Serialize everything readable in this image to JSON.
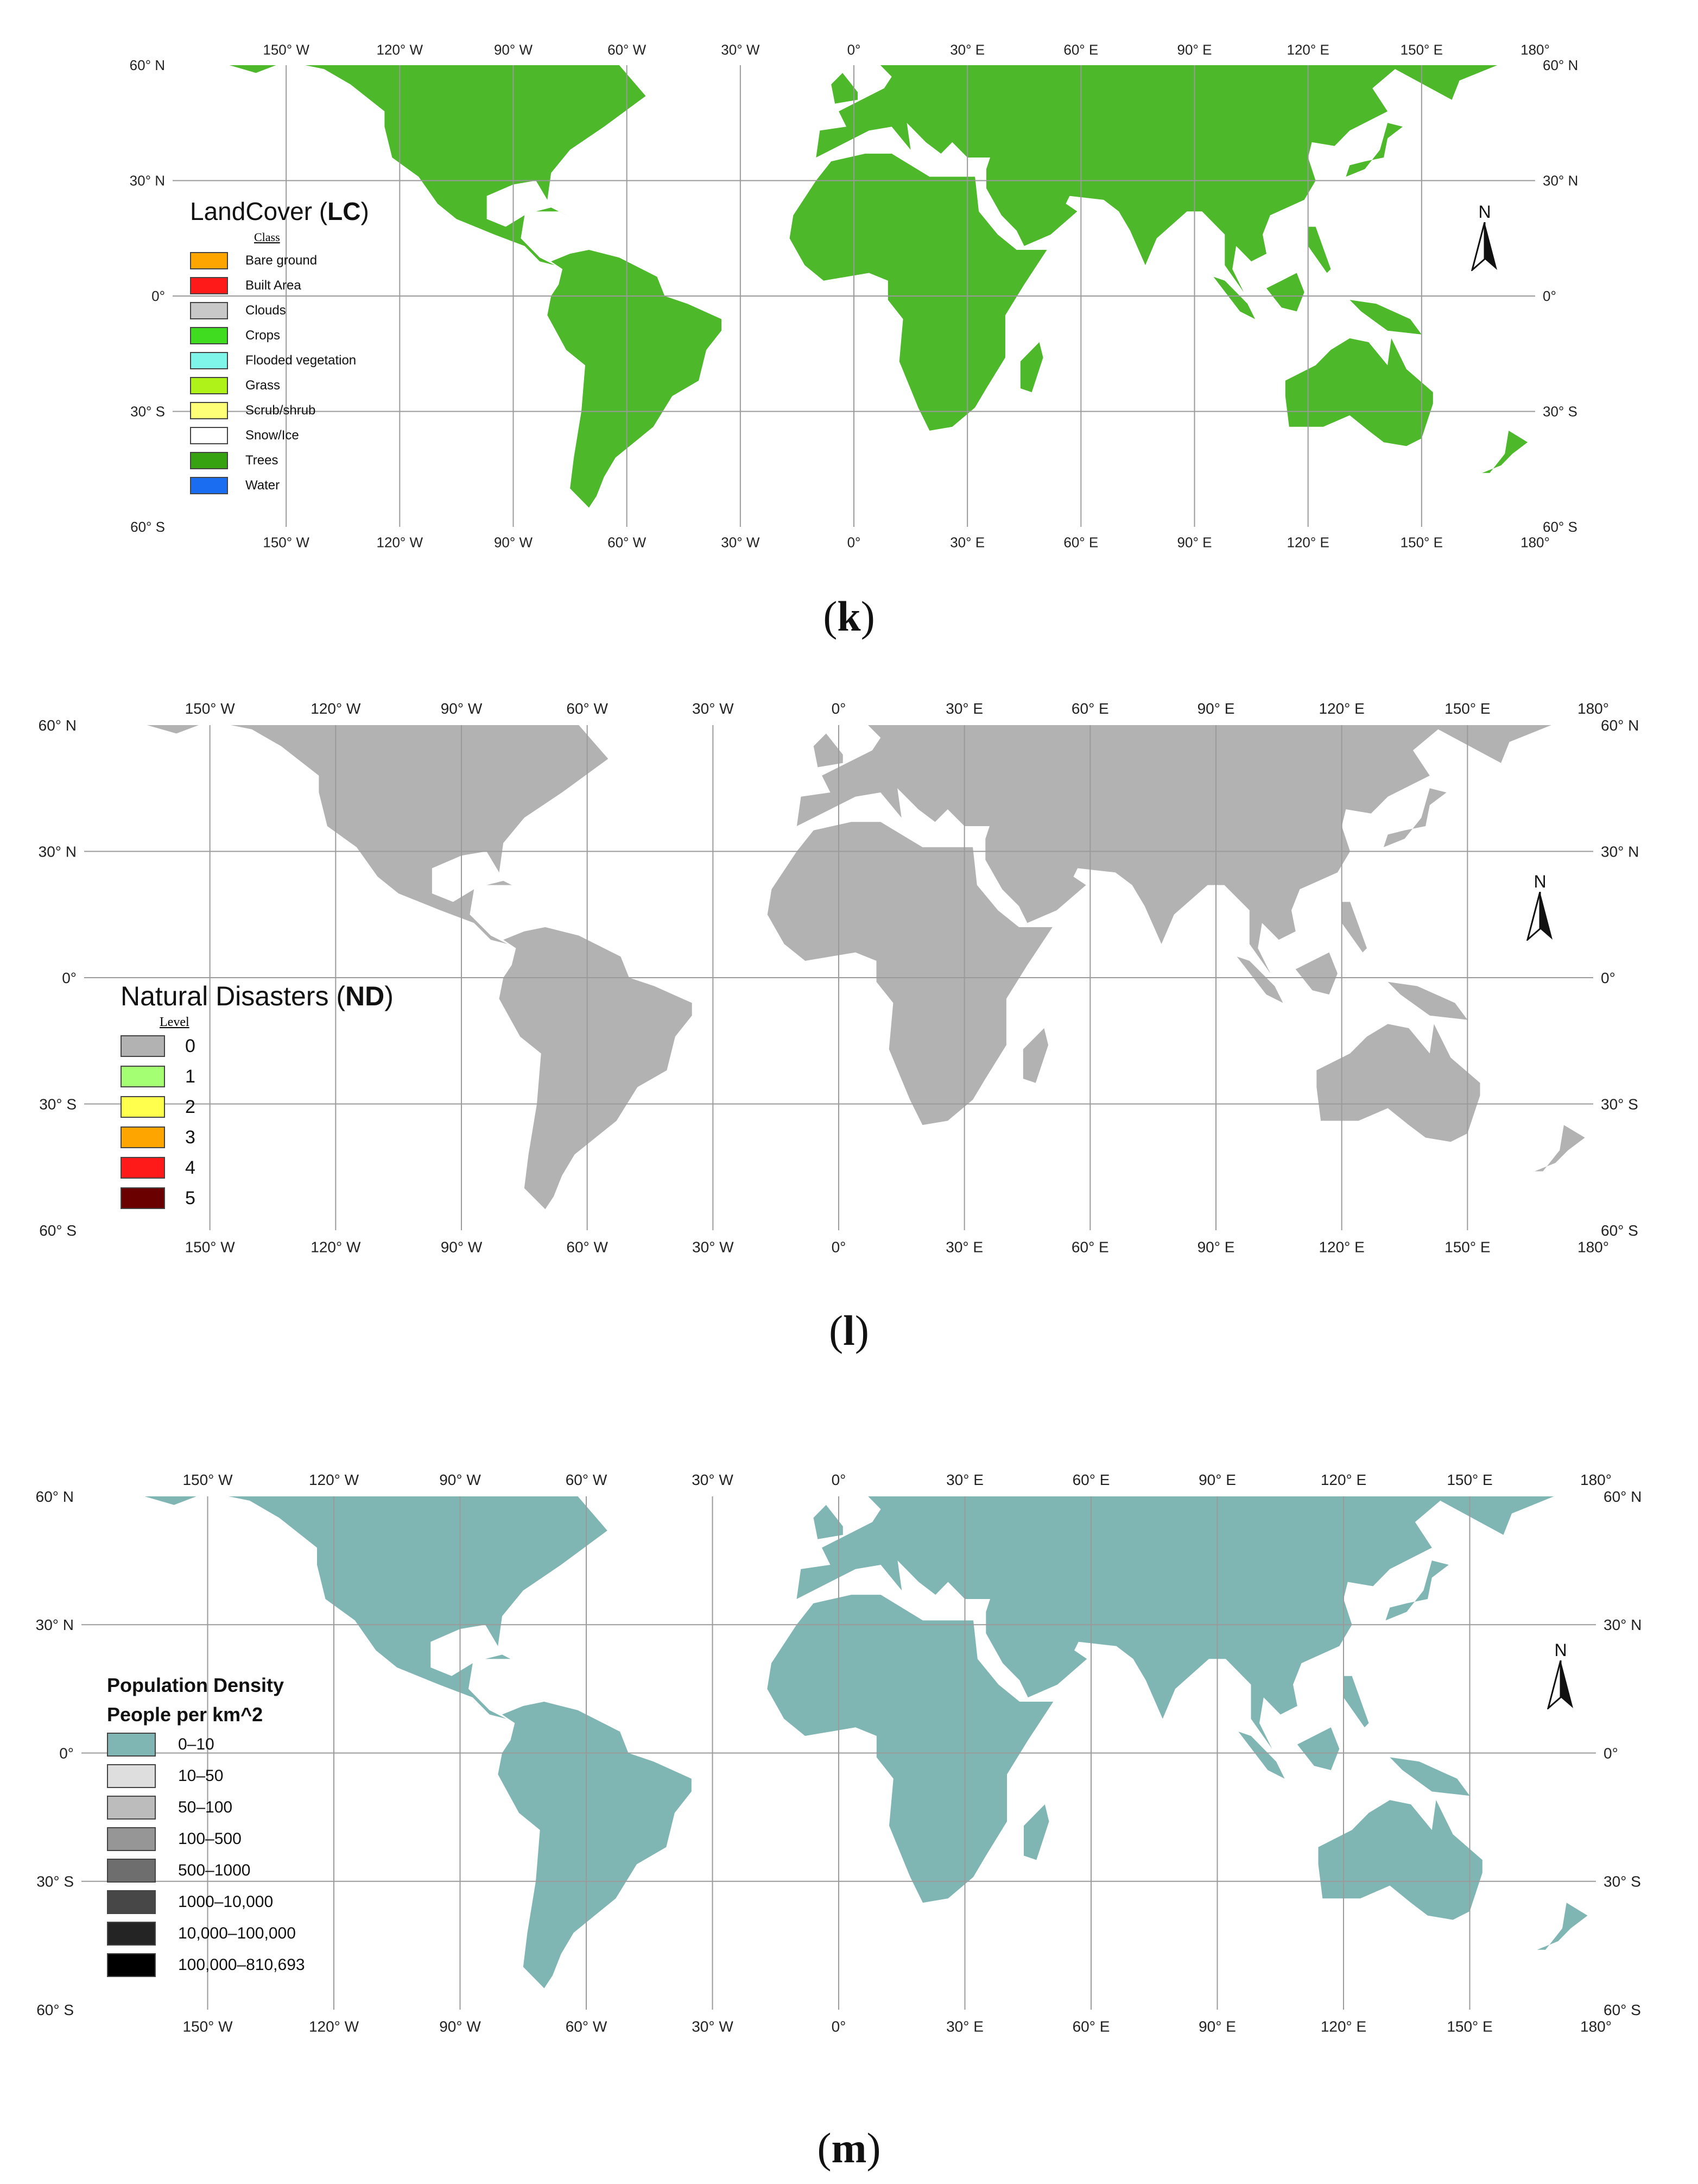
{
  "axes": {
    "lon_labels": [
      "150° W",
      "120° W",
      "90° W",
      "60° W",
      "30° W",
      "0°",
      "30° E",
      "60° E",
      "90° E",
      "120° E",
      "150° E",
      "180°"
    ],
    "lat_labels": [
      "60° N",
      "30° N",
      "0°",
      "30° S",
      "60° S"
    ]
  },
  "panels": [
    {
      "id": "k",
      "caption_letter": "k",
      "legend_title_plain": "LandCover (",
      "legend_title_bold": "LC",
      "legend_title_close": ")",
      "legend_subtitle": "Class",
      "land_color": "#4cb82a",
      "legend_items": [
        {
          "label": "Bare ground",
          "color": "#ffa500"
        },
        {
          "label": "Built Area",
          "color": "#ff1a1a"
        },
        {
          "label": "Clouds",
          "color": "#c8c8c8"
        },
        {
          "label": "Crops",
          "color": "#3fdc1f"
        },
        {
          "label": "Flooded vegetation",
          "color": "#7ff5ea"
        },
        {
          "label": "Grass",
          "color": "#aef21a"
        },
        {
          "label": "Scrub/shrub",
          "color": "#ffff77"
        },
        {
          "label": "Snow/Ice",
          "color": "#ffffff"
        },
        {
          "label": "Trees",
          "color": "#36a212"
        },
        {
          "label": "Water",
          "color": "#1a6cf0"
        }
      ]
    },
    {
      "id": "l",
      "caption_letter": "l",
      "legend_title_plain": "Natural Disasters (",
      "legend_title_bold": "ND",
      "legend_title_close": ")",
      "legend_subtitle": "Level",
      "land_color": "#b2b2b2",
      "legend_items": [
        {
          "label": "0",
          "color": "#b2b2b2"
        },
        {
          "label": "1",
          "color": "#a5ff73"
        },
        {
          "label": "2",
          "color": "#ffff4d"
        },
        {
          "label": "3",
          "color": "#ffa500"
        },
        {
          "label": "4",
          "color": "#ff1a1a"
        },
        {
          "label": "5",
          "color": "#6a0000"
        }
      ]
    },
    {
      "id": "m",
      "caption_letter": "m",
      "legend_title": "Population Density",
      "legend_subtitle": "People per km^2",
      "land_color": "#7fb6b4",
      "legend_items": [
        {
          "label": "0–10",
          "color": "#7fb6b4"
        },
        {
          "label": "10–50",
          "color": "#dedede"
        },
        {
          "label": "50–100",
          "color": "#bcbcbc"
        },
        {
          "label": "100–500",
          "color": "#969696"
        },
        {
          "label": "500–1000",
          "color": "#6e6e6e"
        },
        {
          "label": "1000–10,000",
          "color": "#474747"
        },
        {
          "label": "10,000–100,000",
          "color": "#242424"
        },
        {
          "label": "100,000–810,693",
          "color": "#000000"
        }
      ]
    }
  ],
  "north_label": "N"
}
